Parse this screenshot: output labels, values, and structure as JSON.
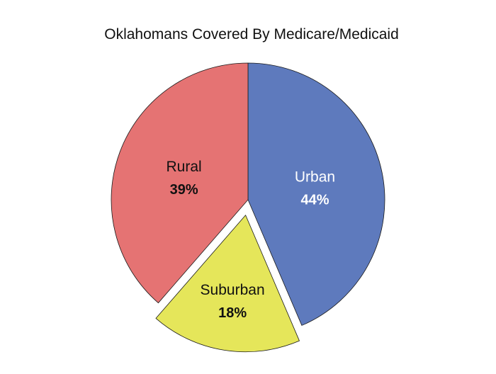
{
  "chart_data": {
    "type": "pie",
    "title": "Oklahomans Covered By Medicare/Medicaid",
    "slices": [
      {
        "label": "Urban",
        "value": 44,
        "display": "44%",
        "color": "#5e7abd",
        "text_color": "#ffffff",
        "exploded": false
      },
      {
        "label": "Suburban",
        "value": 18,
        "display": "18%",
        "color": "#e5e65a",
        "text_color": "#111111",
        "exploded": true
      },
      {
        "label": "Rural",
        "value": 39,
        "display": "39%",
        "color": "#e57373",
        "text_color": "#111111",
        "exploded": false
      }
    ],
    "start": "top",
    "direction": "clockwise",
    "legend": "none"
  }
}
